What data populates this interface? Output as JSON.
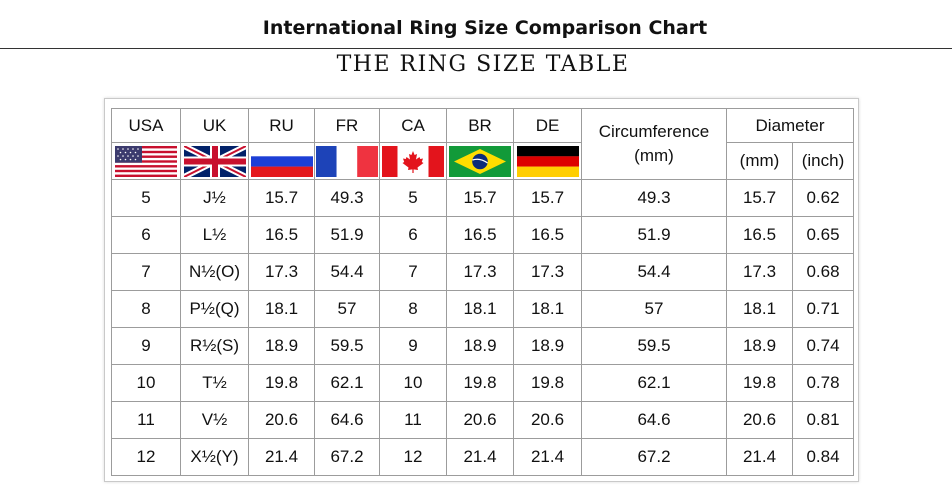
{
  "header": {
    "title": "International Ring Size Comparison Chart",
    "subtitle": "THE RING SIZE TABLE"
  },
  "table": {
    "columns": {
      "usa": "USA",
      "uk": "UK",
      "ru": "RU",
      "fr": "FR",
      "ca": "CA",
      "br": "BR",
      "de": "DE",
      "circumference_line1": "Circumference",
      "circumference_line2": "(mm)",
      "diameter": "Diameter",
      "diameter_mm": "(mm)",
      "diameter_inch": "(inch)"
    },
    "flags": {
      "usa": "us-flag-icon",
      "uk": "uk-flag-icon",
      "ru": "russia-flag-icon",
      "fr": "france-flag-icon",
      "ca": "canada-flag-icon",
      "br": "brazil-flag-icon",
      "de": "germany-flag-icon"
    },
    "rows": [
      [
        "5",
        "J½",
        "15.7",
        "49.3",
        "5",
        "15.7",
        "15.7",
        "49.3",
        "15.7",
        "0.62"
      ],
      [
        "6",
        "L½",
        "16.5",
        "51.9",
        "6",
        "16.5",
        "16.5",
        "51.9",
        "16.5",
        "0.65"
      ],
      [
        "7",
        "N½(O)",
        "17.3",
        "54.4",
        "7",
        "17.3",
        "17.3",
        "54.4",
        "17.3",
        "0.68"
      ],
      [
        "8",
        "P½(Q)",
        "18.1",
        "57",
        "8",
        "18.1",
        "18.1",
        "57",
        "18.1",
        "0.71"
      ],
      [
        "9",
        "R½(S)",
        "18.9",
        "59.5",
        "9",
        "18.9",
        "18.9",
        "59.5",
        "18.9",
        "0.74"
      ],
      [
        "10",
        "T½",
        "19.8",
        "62.1",
        "10",
        "19.8",
        "19.8",
        "62.1",
        "19.8",
        "0.78"
      ],
      [
        "11",
        "V½",
        "20.6",
        "64.6",
        "11",
        "20.6",
        "20.6",
        "64.6",
        "20.6",
        "0.81"
      ],
      [
        "12",
        "X½(Y)",
        "21.4",
        "67.2",
        "12",
        "21.4",
        "21.4",
        "67.2",
        "21.4",
        "0.84"
      ]
    ]
  }
}
